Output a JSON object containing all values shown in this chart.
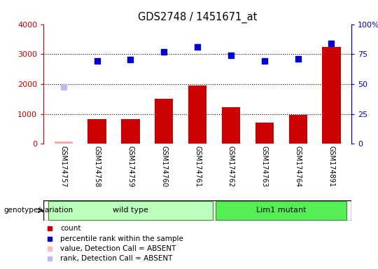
{
  "title": "GDS2748 / 1451671_at",
  "samples": [
    "GSM174757",
    "GSM174758",
    "GSM174759",
    "GSM174760",
    "GSM174761",
    "GSM174762",
    "GSM174763",
    "GSM174764",
    "GSM174891"
  ],
  "counts": [
    80,
    820,
    840,
    1500,
    1950,
    1230,
    720,
    960,
    3230
  ],
  "percentile_ranks": [
    null,
    2780,
    2820,
    3080,
    3230,
    2960,
    2770,
    2840,
    3360
  ],
  "absent_value": [
    80,
    null,
    null,
    null,
    null,
    null,
    null,
    null,
    null
  ],
  "absent_rank": [
    1900,
    null,
    null,
    null,
    null,
    null,
    null,
    null,
    null
  ],
  "count_color": "#cc0000",
  "count_absent_color": "#ffaaaa",
  "rank_color": "#0000cc",
  "rank_absent_color": "#bbbbee",
  "ylim_left": [
    0,
    4000
  ],
  "ylim_right": [
    0,
    100
  ],
  "yticks_left": [
    0,
    1000,
    2000,
    3000,
    4000
  ],
  "ytick_labels_left": [
    "0",
    "1000",
    "2000",
    "3000",
    "4000"
  ],
  "yticks_right": [
    0,
    25,
    50,
    75,
    100
  ],
  "ytick_labels_right": [
    "0",
    "25",
    "50",
    "75",
    "100%"
  ],
  "groups": [
    {
      "label": "wild type",
      "start": 0,
      "end": 4,
      "color": "#bbffbb"
    },
    {
      "label": "Lim1 mutant",
      "start": 5,
      "end": 8,
      "color": "#55ee55"
    }
  ],
  "group_label": "genotype/variation",
  "legend_items": [
    {
      "label": "count",
      "color": "#cc0000"
    },
    {
      "label": "percentile rank within the sample",
      "color": "#0000cc"
    },
    {
      "label": "value, Detection Call = ABSENT",
      "color": "#ffbbbb"
    },
    {
      "label": "rank, Detection Call = ABSENT",
      "color": "#bbbbee"
    }
  ],
  "sample_bg_color": "#d0d0d0",
  "plot_bg_color": "#ffffff",
  "grid_lines": [
    1000,
    2000,
    3000
  ]
}
